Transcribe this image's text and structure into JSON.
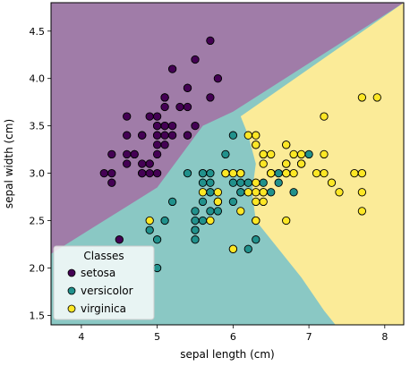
{
  "chart_data": {
    "type": "scatter",
    "xlabel": "sepal length (cm)",
    "ylabel": "sepal width (cm)",
    "xlim": [
      3.6,
      8.25
    ],
    "ylim": [
      1.4,
      4.8
    ],
    "xticks": [
      4,
      5,
      6,
      7,
      8
    ],
    "yticks": [
      1.5,
      2.0,
      2.5,
      3.0,
      3.5,
      4.0,
      4.5
    ],
    "grid": false,
    "legend": {
      "title": "Classes",
      "placement": "lower-left"
    },
    "regions": {
      "note": "decision regions of a classifier",
      "colors": {
        "setosa": "#a07ca8",
        "versicolor": "#8ac8c4",
        "virginica": "#fbeb98"
      }
    },
    "series": [
      {
        "name": "setosa",
        "color": "#440154",
        "points": [
          [
            5.1,
            3.5
          ],
          [
            4.9,
            3.0
          ],
          [
            4.7,
            3.2
          ],
          [
            4.6,
            3.1
          ],
          [
            5.0,
            3.6
          ],
          [
            5.4,
            3.9
          ],
          [
            4.6,
            3.4
          ],
          [
            5.0,
            3.4
          ],
          [
            4.4,
            2.9
          ],
          [
            4.9,
            3.1
          ],
          [
            5.4,
            3.7
          ],
          [
            4.8,
            3.4
          ],
          [
            4.8,
            3.0
          ],
          [
            4.3,
            3.0
          ],
          [
            5.8,
            4.0
          ],
          [
            5.7,
            4.4
          ],
          [
            5.4,
            3.9
          ],
          [
            5.1,
            3.5
          ],
          [
            5.7,
            3.8
          ],
          [
            5.1,
            3.8
          ],
          [
            5.4,
            3.4
          ],
          [
            5.1,
            3.7
          ],
          [
            4.6,
            3.6
          ],
          [
            5.1,
            3.3
          ],
          [
            4.8,
            3.4
          ],
          [
            5.0,
            3.0
          ],
          [
            5.0,
            3.4
          ],
          [
            5.2,
            3.5
          ],
          [
            5.2,
            3.4
          ],
          [
            4.7,
            3.2
          ],
          [
            4.8,
            3.1
          ],
          [
            5.4,
            3.4
          ],
          [
            5.2,
            4.1
          ],
          [
            5.5,
            4.2
          ],
          [
            4.9,
            3.1
          ],
          [
            5.0,
            3.2
          ],
          [
            5.5,
            3.5
          ],
          [
            4.9,
            3.6
          ],
          [
            4.4,
            3.0
          ],
          [
            5.1,
            3.4
          ],
          [
            5.0,
            3.5
          ],
          [
            4.5,
            2.3
          ],
          [
            4.4,
            3.2
          ],
          [
            5.0,
            3.5
          ],
          [
            5.1,
            3.8
          ],
          [
            4.8,
            3.0
          ],
          [
            5.1,
            3.8
          ],
          [
            4.6,
            3.2
          ],
          [
            5.3,
            3.7
          ],
          [
            5.0,
            3.3
          ]
        ]
      },
      {
        "name": "versicolor",
        "color": "#21918c",
        "points": [
          [
            7.0,
            3.2
          ],
          [
            6.4,
            3.2
          ],
          [
            6.9,
            3.1
          ],
          [
            5.5,
            2.3
          ],
          [
            6.5,
            2.8
          ],
          [
            5.7,
            2.8
          ],
          [
            6.3,
            3.3
          ],
          [
            4.9,
            2.4
          ],
          [
            6.6,
            2.9
          ],
          [
            5.2,
            2.7
          ],
          [
            5.0,
            2.0
          ],
          [
            5.9,
            3.0
          ],
          [
            6.0,
            2.2
          ],
          [
            6.1,
            2.9
          ],
          [
            5.6,
            2.9
          ],
          [
            6.7,
            3.1
          ],
          [
            5.6,
            3.0
          ],
          [
            5.8,
            2.7
          ],
          [
            6.2,
            2.2
          ],
          [
            5.6,
            2.5
          ],
          [
            5.9,
            3.2
          ],
          [
            6.1,
            2.8
          ],
          [
            6.3,
            2.5
          ],
          [
            6.1,
            2.8
          ],
          [
            6.4,
            2.9
          ],
          [
            6.6,
            3.0
          ],
          [
            6.8,
            2.8
          ],
          [
            6.7,
            3.0
          ],
          [
            6.0,
            2.9
          ],
          [
            5.7,
            2.6
          ],
          [
            5.5,
            2.4
          ],
          [
            5.5,
            2.4
          ],
          [
            5.8,
            2.7
          ],
          [
            6.0,
            2.7
          ],
          [
            5.4,
            3.0
          ],
          [
            6.0,
            3.4
          ],
          [
            6.7,
            3.1
          ],
          [
            6.3,
            2.3
          ],
          [
            5.6,
            3.0
          ],
          [
            5.5,
            2.5
          ],
          [
            5.5,
            2.6
          ],
          [
            6.1,
            3.0
          ],
          [
            5.8,
            2.6
          ],
          [
            5.0,
            2.3
          ],
          [
            5.6,
            2.7
          ],
          [
            5.7,
            3.0
          ],
          [
            5.7,
            2.9
          ],
          [
            6.2,
            2.9
          ],
          [
            5.1,
            2.5
          ],
          [
            5.7,
            2.8
          ]
        ]
      },
      {
        "name": "virginica",
        "color": "#fde725",
        "points": [
          [
            6.3,
            3.3
          ],
          [
            5.8,
            2.7
          ],
          [
            7.1,
            3.0
          ],
          [
            6.3,
            2.9
          ],
          [
            6.5,
            3.0
          ],
          [
            7.6,
            3.0
          ],
          [
            4.9,
            2.5
          ],
          [
            7.3,
            2.9
          ],
          [
            6.7,
            2.5
          ],
          [
            7.2,
            3.6
          ],
          [
            6.5,
            3.2
          ],
          [
            6.4,
            2.7
          ],
          [
            6.8,
            3.0
          ],
          [
            5.7,
            2.5
          ],
          [
            5.8,
            2.8
          ],
          [
            6.4,
            3.2
          ],
          [
            6.5,
            3.0
          ],
          [
            7.7,
            3.8
          ],
          [
            7.7,
            2.6
          ],
          [
            6.0,
            2.2
          ],
          [
            6.9,
            3.2
          ],
          [
            5.6,
            2.8
          ],
          [
            7.7,
            2.8
          ],
          [
            6.3,
            2.7
          ],
          [
            6.7,
            3.3
          ],
          [
            7.2,
            3.2
          ],
          [
            6.2,
            2.8
          ],
          [
            6.1,
            3.0
          ],
          [
            6.4,
            2.8
          ],
          [
            7.2,
            3.0
          ],
          [
            7.4,
            2.8
          ],
          [
            7.9,
            3.8
          ],
          [
            6.4,
            2.8
          ],
          [
            6.3,
            2.8
          ],
          [
            6.1,
            2.6
          ],
          [
            7.7,
            3.0
          ],
          [
            6.3,
            3.4
          ],
          [
            6.4,
            3.1
          ],
          [
            6.0,
            3.0
          ],
          [
            6.9,
            3.1
          ],
          [
            6.7,
            3.1
          ],
          [
            6.9,
            3.1
          ],
          [
            5.8,
            2.7
          ],
          [
            6.8,
            3.2
          ],
          [
            6.7,
            3.3
          ],
          [
            6.7,
            3.0
          ],
          [
            6.3,
            2.5
          ],
          [
            6.5,
            3.0
          ],
          [
            6.2,
            3.4
          ],
          [
            5.9,
            3.0
          ]
        ]
      }
    ]
  }
}
